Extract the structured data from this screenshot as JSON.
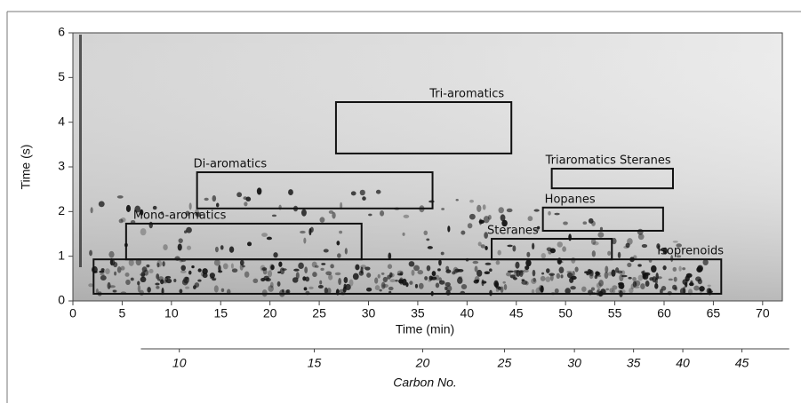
{
  "chart_data": {
    "type": "region-map",
    "x_label": "Time (min)",
    "y_label": "Time (s)",
    "xlim": [
      0,
      72
    ],
    "ylim": [
      0,
      6
    ],
    "xticks": [
      0,
      5,
      10,
      15,
      20,
      25,
      30,
      35,
      40,
      45,
      50,
      55,
      60,
      65,
      70
    ],
    "yticks": [
      0,
      1,
      2,
      3,
      4,
      5,
      6
    ],
    "regions": [
      {
        "name": "Tri-aromatics",
        "x": [
          26.7,
          44.5
        ],
        "y": [
          3.3,
          4.45
        ]
      },
      {
        "name": "Di-aromatics",
        "x": [
          12.6,
          36.5
        ],
        "y": [
          2.07,
          2.88
        ]
      },
      {
        "name": "Mono-aromatics",
        "x": [
          5.4,
          29.3
        ],
        "y": [
          0.93,
          1.73
        ]
      },
      {
        "name": "Triaromatics Steranes",
        "x": [
          48.6,
          60.9
        ],
        "y": [
          2.52,
          2.96
        ]
      },
      {
        "name": "Hopanes",
        "x": [
          47.7,
          59.9
        ],
        "y": [
          1.57,
          2.09
        ]
      },
      {
        "name": "Steranes",
        "x": [
          42.5,
          54.7
        ],
        "y": [
          0.93,
          1.39
        ]
      },
      {
        "name": "Isoprenoids",
        "x": [
          2.1,
          65.8
        ],
        "y": [
          0.16,
          0.93
        ]
      }
    ],
    "carbon_axis": {
      "label": "Carbon No.",
      "range_times": [
        6.9,
        72.7
      ],
      "ticks": [
        10,
        15,
        20,
        25,
        30,
        35,
        40,
        45
      ],
      "tick_times": [
        10.8,
        24.5,
        35.5,
        43.8,
        50.9,
        56.9,
        61.9,
        67.9
      ]
    }
  }
}
